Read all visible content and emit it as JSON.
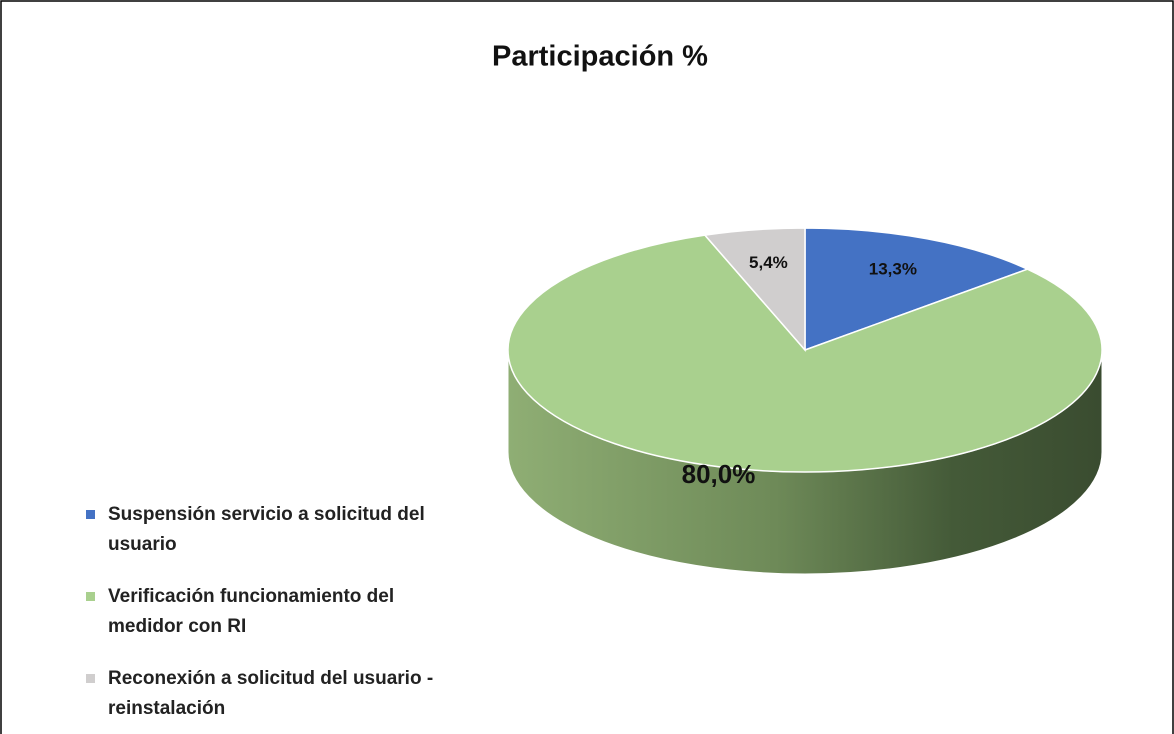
{
  "chart_data": {
    "type": "pie",
    "title": "Participación %",
    "categories": [
      "Suspensión servicio a solicitud del usuario",
      "Verificación funcionamiento del medidor con RI",
      "Reconexión a solicitud del usuario - reinstalación"
    ],
    "values": [
      13.3,
      80.0,
      5.4
    ],
    "value_labels": [
      "13,3%",
      "80,0%",
      "5,4%"
    ],
    "colors": [
      "#4472c4",
      "#a9d08e",
      "#d0cece"
    ],
    "legend": "left"
  }
}
